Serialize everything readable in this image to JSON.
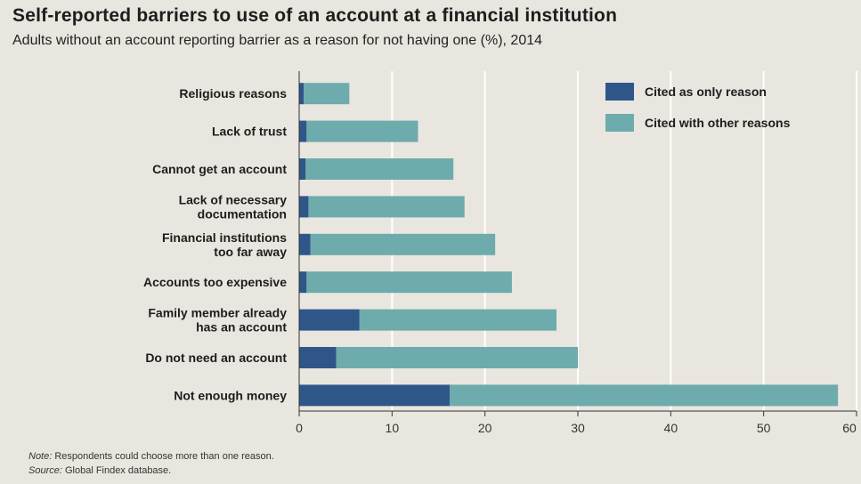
{
  "header": {
    "title": "Self-reported barriers to use of an account at a financial institution",
    "subtitle": "Adults without an account reporting barrier as a reason for not having one (%), 2014"
  },
  "footer": {
    "note_label": "Note:",
    "note_text": " Respondents could choose more than one reason.",
    "source_label": "Source:",
    "source_text": " Global Findex database."
  },
  "colors": {
    "only_reason": "#2f5689",
    "other_reasons": "#6eabac",
    "gridline": "#ffffff",
    "axis": "#333333"
  },
  "chart_data": {
    "type": "bar",
    "orientation": "horizontal",
    "stacked": true,
    "title": "Self-reported barriers to use of an account at a financial institution",
    "subtitle": "Adults without an account reporting barrier as a reason for not having one (%), 2014",
    "categories": [
      [
        "Religious reasons"
      ],
      [
        "Lack of trust"
      ],
      [
        "Cannot get an account"
      ],
      [
        "Lack of necessary",
        "documentation"
      ],
      [
        "Financial institutions",
        "too far away"
      ],
      [
        "Accounts too expensive"
      ],
      [
        "Family member already",
        "has an account"
      ],
      [
        "Do not need an account"
      ],
      [
        "Not enough money"
      ]
    ],
    "series": [
      {
        "name": "Cited as only reason",
        "values": [
          0.5,
          0.8,
          0.7,
          1.0,
          1.2,
          0.8,
          6.5,
          4.0,
          16.2
        ]
      },
      {
        "name": "Cited with other reasons",
        "values": [
          4.9,
          12.0,
          15.9,
          16.8,
          19.9,
          22.1,
          21.2,
          26.0,
          41.8
        ]
      }
    ],
    "xlim": [
      0,
      60
    ],
    "xticks": [
      0,
      10,
      20,
      30,
      40,
      50,
      60
    ],
    "legend_position": "top-right",
    "grid": "vertical"
  }
}
